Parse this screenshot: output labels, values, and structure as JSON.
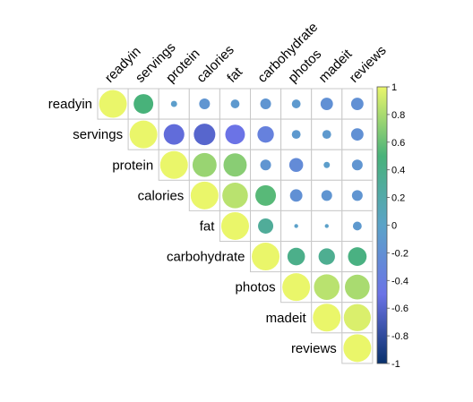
{
  "chart_data": {
    "type": "heatmap",
    "subtype": "correlation-circles-upper-triangle",
    "variables": [
      "readyin",
      "servings",
      "protein",
      "calories",
      "fat",
      "carbohydrate",
      "photos",
      "madeit",
      "reviews"
    ],
    "matrix": [
      [
        1.0,
        0.5,
        -0.05,
        -0.15,
        -0.1,
        -0.15,
        -0.1,
        -0.2,
        -0.2
      ],
      [
        0.5,
        1.0,
        -0.55,
        -0.6,
        -0.5,
        -0.35,
        -0.1,
        -0.1,
        -0.2
      ],
      [
        -0.05,
        -0.55,
        1.0,
        0.75,
        0.7,
        -0.15,
        -0.25,
        -0.05,
        -0.15
      ],
      [
        -0.15,
        -0.6,
        0.75,
        1.0,
        0.85,
        0.55,
        -0.2,
        -0.15,
        -0.15
      ],
      [
        -0.1,
        -0.5,
        0.7,
        0.85,
        1.0,
        0.3,
        -0.02,
        -0.02,
        -0.1
      ],
      [
        -0.15,
        -0.35,
        -0.15,
        0.55,
        0.3,
        1.0,
        0.4,
        0.35,
        0.45
      ],
      [
        -0.1,
        -0.1,
        -0.25,
        -0.2,
        -0.02,
        0.4,
        1.0,
        0.85,
        0.8
      ],
      [
        -0.2,
        -0.1,
        -0.05,
        -0.15,
        -0.02,
        0.35,
        0.85,
        1.0,
        0.95
      ],
      [
        -0.2,
        -0.2,
        -0.15,
        -0.15,
        -0.1,
        0.45,
        0.8,
        0.95,
        1.0
      ]
    ],
    "colorbar": {
      "range": [
        -1,
        1
      ],
      "ticks": [
        "1",
        "0.8",
        "0.6",
        "0.4",
        "0.2",
        "0",
        "-0.2",
        "-0.4",
        "-0.6",
        "-0.8",
        "-1"
      ],
      "colors": [
        "#08306B",
        "#6B73E6",
        "#5BA3C8",
        "#48B27A",
        "#EAF66A"
      ]
    },
    "grid_color": "#C8C8C8"
  }
}
